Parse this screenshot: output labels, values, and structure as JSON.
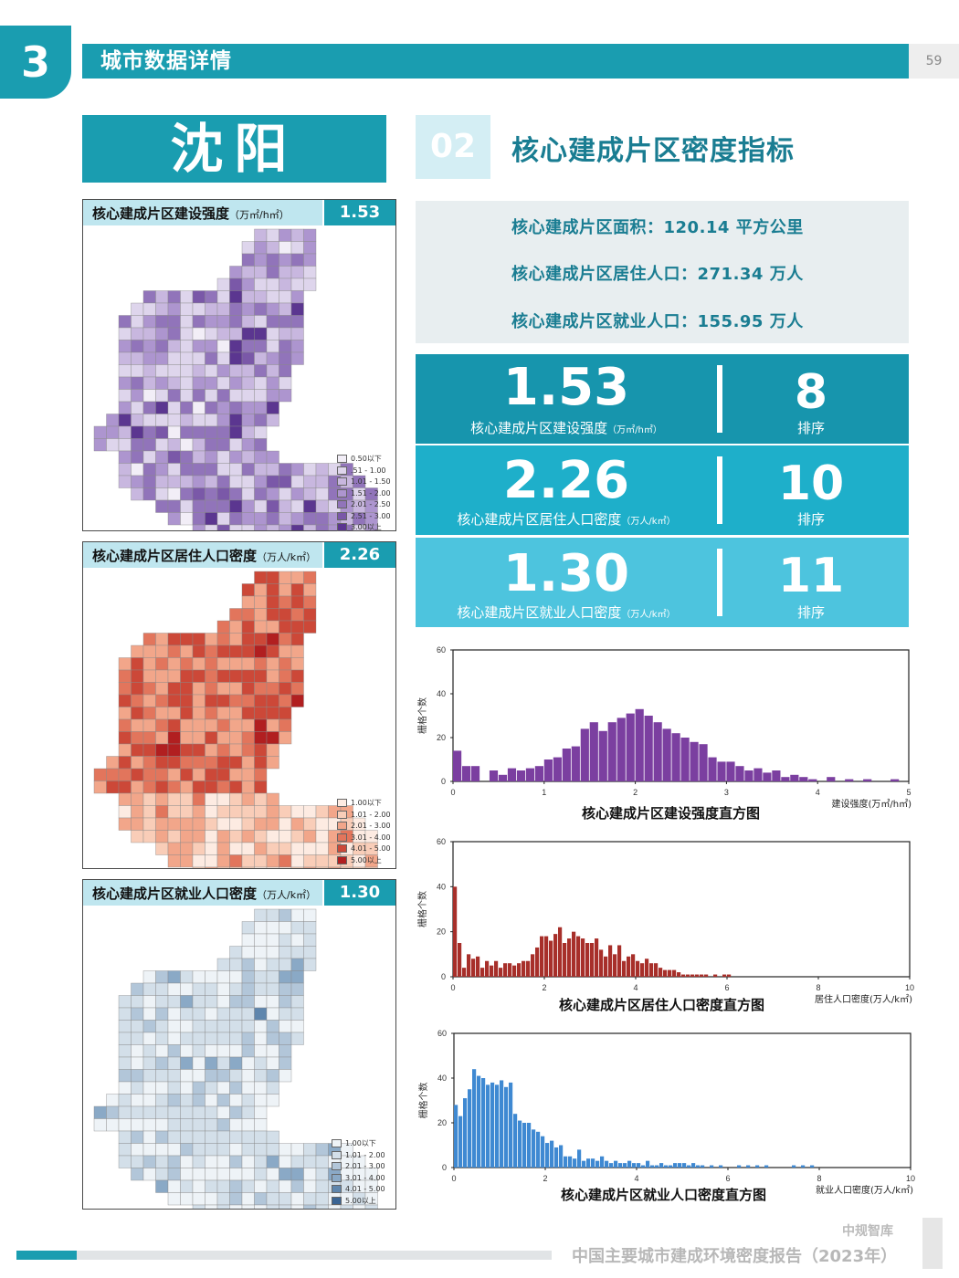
{
  "header": {
    "chapter_number": "3",
    "section_title": "城市数据详情",
    "page_number": "59"
  },
  "city": {
    "name": "沈阳"
  },
  "section": {
    "number": "02",
    "title": "核心建成片区密度指标"
  },
  "maps": [
    {
      "label": "核心建成片区建设强度",
      "unit": "（万㎡/h㎡）",
      "value": "1.53",
      "legend": [
        "0.50以下",
        ".51 - 1.00",
        "1.01 - 1.50",
        "1.51 - 2.00",
        "2.01 - 2.50",
        "2.51 - 3.00",
        "3.00以上"
      ],
      "colors": [
        "#f2eef7",
        "#ded5ec",
        "#c8b7df",
        "#ad95cf",
        "#9174ba",
        "#7a58a8",
        "#5b3690"
      ]
    },
    {
      "label": "核心建成片区居住人口密度",
      "unit": "（万人/k㎡）",
      "value": "2.26",
      "legend": [
        "1.00以下",
        "1.01 - 2.00",
        "2.01 - 3.00",
        "3.01 - 4.00",
        "4.01 - 5.00",
        "5.00以上"
      ],
      "colors": [
        "#fdebe2",
        "#f9cdb8",
        "#f2a68a",
        "#e2755c",
        "#cc4838",
        "#b11f20"
      ]
    },
    {
      "label": "核心建成片区就业人口密度",
      "unit": "（万人/k㎡）",
      "value": "1.30",
      "legend": [
        "1.00以下",
        "1.01 - 2.00",
        "2.01 - 3.00",
        "3.01 - 4.00",
        "4.01 - 5.00",
        "5.00以上"
      ],
      "colors": [
        "#eef3f7",
        "#d3dfe9",
        "#b2c6d9",
        "#8aa9c6",
        "#5f86ad",
        "#3b6594"
      ]
    }
  ],
  "stats": {
    "area": "核心建成片区面积：120.14 平方公里",
    "residents": "核心建成片区居住人口：271.34 万人",
    "employment": "核心建成片区就业人口：155.95 万人"
  },
  "indicators": [
    {
      "value": "1.53",
      "label": "核心建成片区建设强度",
      "unit": "（万㎡/h㎡）",
      "rank": "8",
      "rank_label": "排序",
      "color": "#1795ad"
    },
    {
      "value": "2.26",
      "label": "核心建成片区居住人口密度",
      "unit": "（万人/k㎡）",
      "rank": "10",
      "rank_label": "排序",
      "color": "#1eafca"
    },
    {
      "value": "1.30",
      "label": "核心建成片区就业人口密度",
      "unit": "（万人/k㎡）",
      "rank": "11",
      "rank_label": "排序",
      "color": "#4dc4de"
    }
  ],
  "chart_data": [
    {
      "type": "bar",
      "title": "核心建成片区建设强度直方图",
      "xlabel": "建设强度(万㎡/h㎡)",
      "ylabel": "栅格个数",
      "xlim": [
        0,
        5
      ],
      "ylim": [
        0,
        60
      ],
      "xticks": [
        "0",
        "1",
        "2",
        "3",
        "4",
        "5"
      ],
      "yticks": [
        "0",
        "20",
        "40",
        "60"
      ],
      "bin_width": 0.1,
      "color": "#7b3fa0",
      "values": [
        14,
        7,
        7,
        0,
        5,
        3,
        6,
        5,
        6,
        7,
        10,
        11,
        15,
        16,
        24,
        27,
        23,
        27,
        29,
        31,
        33,
        30,
        27,
        24,
        22,
        20,
        18,
        17,
        11,
        9,
        9,
        7,
        5,
        6,
        4,
        5,
        2,
        3,
        2,
        1,
        0,
        2,
        0,
        1,
        0,
        1,
        0,
        0,
        1,
        0
      ]
    },
    {
      "type": "bar",
      "title": "核心建成片区居住人口密度直方图",
      "xlabel": "居住人口密度(万人/k㎡)",
      "ylabel": "栅格个数",
      "xlim": [
        0,
        10
      ],
      "ylim": [
        0,
        60
      ],
      "xticks": [
        "0",
        "2",
        "4",
        "6",
        "8",
        "10"
      ],
      "yticks": [
        "0",
        "20",
        "40",
        "60"
      ],
      "bin_width": 0.1,
      "color": "#a72f2a",
      "values": [
        40,
        15,
        4,
        10,
        8,
        9,
        4,
        7,
        5,
        7,
        4,
        6,
        6,
        5,
        6,
        7,
        7,
        10,
        13,
        18,
        18,
        16,
        19,
        22,
        15,
        17,
        20,
        18,
        17,
        15,
        15,
        17,
        12,
        9,
        14,
        10,
        14,
        7,
        9,
        10,
        7,
        6,
        8,
        6,
        6,
        4,
        3,
        3,
        3,
        2,
        1,
        1,
        1,
        1,
        1,
        1,
        0,
        1,
        0,
        1,
        1,
        0,
        0,
        0,
        0,
        0,
        0,
        0,
        0,
        0,
        0,
        0,
        0,
        0,
        0,
        0,
        0,
        0,
        0,
        0,
        0,
        0,
        0,
        0,
        0,
        0,
        0,
        0,
        0,
        0,
        0,
        0,
        0,
        0,
        0,
        0,
        0,
        0,
        0,
        0
      ]
    },
    {
      "type": "bar",
      "title": "核心建成片区就业人口密度直方图",
      "xlabel": "就业人口密度(万人/k㎡)",
      "ylabel": "栅格个数",
      "xlim": [
        0,
        10
      ],
      "ylim": [
        0,
        60
      ],
      "xticks": [
        "0",
        "2",
        "4",
        "6",
        "8",
        "10"
      ],
      "yticks": [
        "0",
        "20",
        "40",
        "60"
      ],
      "bin_width": 0.1,
      "color": "#3f89d2",
      "values": [
        28,
        23,
        31,
        35,
        44,
        41,
        40,
        37,
        38,
        37,
        39,
        36,
        38,
        24,
        21,
        20,
        20,
        17,
        16,
        14,
        11,
        12,
        9,
        10,
        5,
        5,
        4,
        8,
        3,
        4,
        4,
        3,
        5,
        3,
        2,
        3,
        2,
        2,
        3,
        2,
        2,
        1,
        3,
        1,
        1,
        2,
        1,
        1,
        2,
        2,
        2,
        1,
        2,
        1,
        1,
        0,
        1,
        0,
        1,
        0,
        0,
        0,
        1,
        0,
        1,
        0,
        1,
        0,
        1,
        0,
        0,
        0,
        0,
        0,
        1,
        0,
        1,
        0,
        1,
        0,
        0,
        0,
        0,
        0,
        0,
        0,
        0,
        0,
        0,
        0,
        0,
        0,
        0,
        0,
        0,
        0,
        0,
        0,
        0,
        0
      ]
    }
  ],
  "footer": {
    "brand": "中规智库",
    "report_title": "中国主要城市建成环境密度报告（2023年）"
  }
}
